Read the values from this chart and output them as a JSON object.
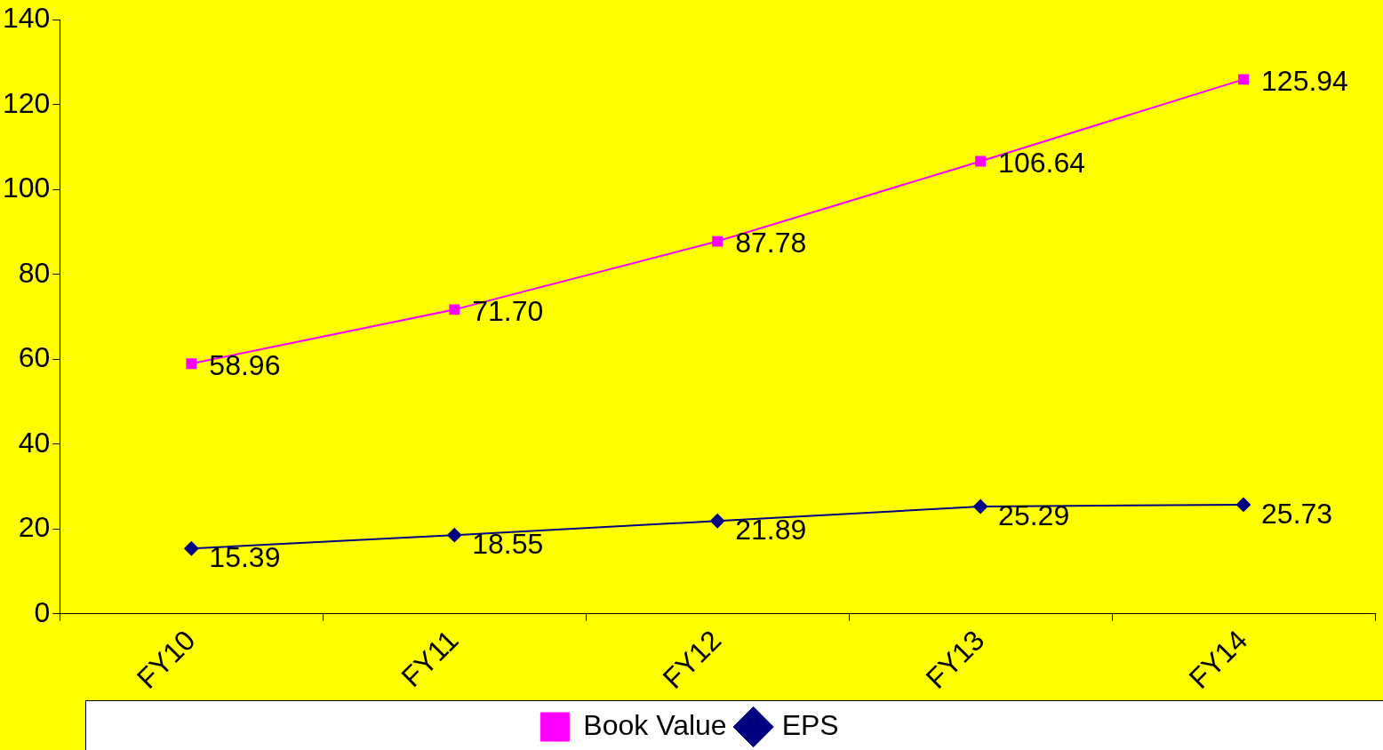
{
  "chart_data": {
    "type": "line",
    "categories": [
      "FY10",
      "FY11",
      "FY12",
      "FY13",
      "FY14"
    ],
    "series": [
      {
        "name": "Book Value",
        "color": "#ff00ff",
        "marker": "square",
        "values": [
          58.96,
          71.7,
          87.78,
          106.64,
          125.94
        ],
        "value_labels": [
          "58.96",
          "71.70",
          "87.78",
          "106.64",
          "125.94"
        ]
      },
      {
        "name": "EPS",
        "color": "#000080",
        "marker": "diamond",
        "values": [
          15.39,
          18.55,
          21.89,
          25.29,
          25.73
        ],
        "value_labels": [
          "15.39",
          "18.55",
          "21.89",
          "25.29",
          "25.73"
        ]
      }
    ],
    "ylim": [
      0,
      140
    ],
    "yticks": [
      0,
      20,
      40,
      60,
      80,
      100,
      120,
      140
    ],
    "grid": false,
    "legend": "bottom",
    "line_style": "solid"
  }
}
